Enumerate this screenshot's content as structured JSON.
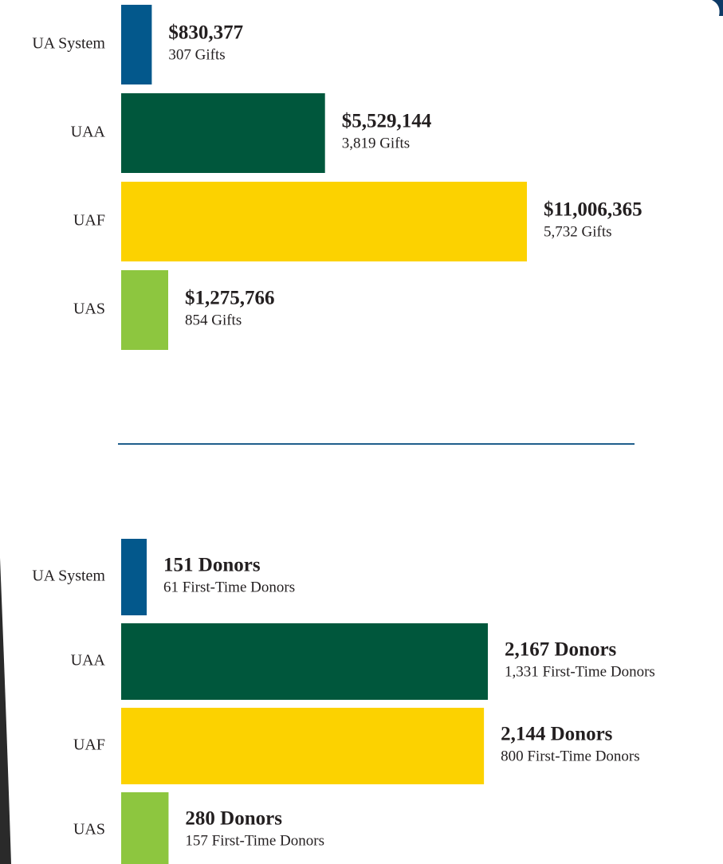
{
  "chart_data": [
    {
      "type": "bar",
      "orientation": "horizontal",
      "categories": [
        "UA System",
        "UAA",
        "UAF",
        "UAS"
      ],
      "values": [
        830377,
        5529144,
        11006365,
        1275766
      ],
      "value_labels": [
        "$830,377",
        "$5,529,144",
        "$11,006,365",
        "$1,275,766"
      ],
      "sublabels": [
        "307 Gifts",
        "3,819 Gifts",
        "5,732 Gifts",
        "854 Gifts"
      ],
      "colors": [
        "#03588c",
        "#00573c",
        "#fcd200",
        "#8dc63f"
      ]
    },
    {
      "type": "bar",
      "orientation": "horizontal",
      "categories": [
        "UA System",
        "UAA",
        "UAF",
        "UAS"
      ],
      "values": [
        151,
        2167,
        2144,
        280
      ],
      "value_labels": [
        "151 Donors",
        "2,167 Donors",
        "2,144 Donors",
        "280 Donors"
      ],
      "sublabels": [
        "61 First-Time Donors",
        "1,331 First-Time Donors",
        "800 First-Time Donors",
        "157 First-Time Donors"
      ],
      "colors": [
        "#03588c",
        "#00573c",
        "#fcd200",
        "#8dc63f"
      ]
    }
  ]
}
